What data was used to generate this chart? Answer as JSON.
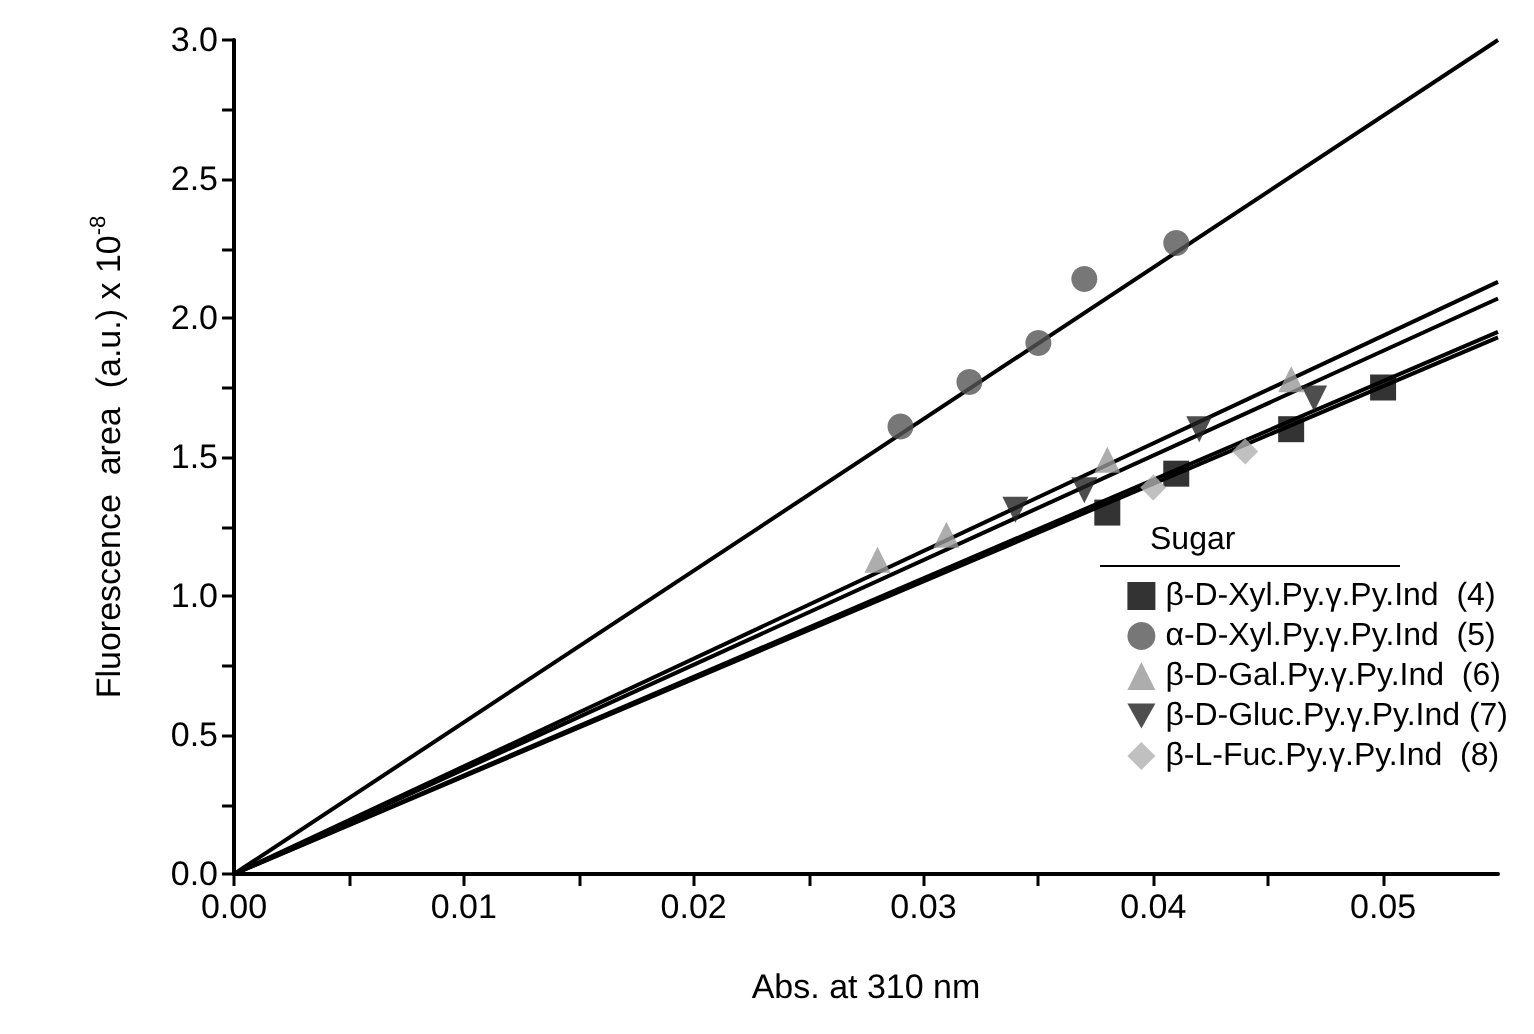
{
  "chart_data": {
    "type": "scatter",
    "xlabel": "Abs. at 310 nm",
    "ylabel": "Fluorescence  area  (a.u.) x 10$^{-8}$",
    "legend_title": "Sugar",
    "legend": "right",
    "grid": false,
    "xlim": [
      0,
      0.055
    ],
    "ylim": [
      0,
      3
    ],
    "xticks": [
      {
        "value": 0,
        "label": "0.00"
      },
      {
        "value": 0.005,
        "label": null
      },
      "0.01",
      {
        "value": 0.015,
        "label": null
      },
      0.02,
      {
        "value": 0.025,
        "label": null
      },
      0.03,
      {
        "value": 0.035,
        "label": null
      },
      0.04,
      {
        "value": 0.045,
        "label": null
      },
      0.05
    ],
    "yticks": [
      {
        "value": 0,
        "label": "0.0"
      },
      {
        "value": 0.25,
        "label": null
      },
      0.5,
      {
        "value": 0.75,
        "label": null
      },
      {
        "value": 1,
        "label": "1.0"
      },
      {
        "value": 1.25,
        "label": null
      },
      1.5,
      {
        "value": 1.75,
        "label": null
      },
      {
        "value": 2,
        "label": "2.0"
      },
      {
        "value": 2.25,
        "label": null
      },
      2.5,
      {
        "value": 2.75,
        "label": null
      },
      {
        "value": 3,
        "label": "3.0"
      }
    ],
    "series": [
      {
        "name": "β-D-Xyl.Py.γ.Py.Ind  (4)",
        "color": "#000000",
        "marker": "square",
        "x": [
          0.038,
          0.041,
          0.046,
          0.05
        ],
        "values": [
          1.3,
          1.44,
          1.6,
          1.75
        ]
      },
      {
        "name": "α-D-Xyl.Py.γ.Py.Ind  (5)",
        "color": "#555555",
        "marker": "circle",
        "x": [
          0.029,
          0.032,
          0.035,
          0.037,
          0.041
        ],
        "values": [
          1.61,
          1.77,
          1.91,
          2.14,
          2.27
        ]
      },
      {
        "name": "β-D-Gal.Py.γ.Py.Ind  (6)",
        "color": "#999999",
        "marker": "triangle",
        "x": [
          0.028,
          0.031,
          0.038,
          0.046
        ],
        "values": [
          1.13,
          1.22,
          1.49,
          1.78
        ]
      },
      {
        "name": "β-D-Gluc.Py.γ.Py.Ind (7)",
        "color": "#222222",
        "marker": "triangle-down",
        "x": [
          0.034,
          0.037,
          0.042,
          0.047
        ],
        "values": [
          1.31,
          1.38,
          1.6,
          1.71
        ]
      },
      {
        "name": "β-L-Fuc.Py.γ.Py.Ind  (8)",
        "color": "#b0b0b0",
        "marker": "diamond",
        "x": [
          0.04,
          0.044
        ],
        "values": [
          1.39,
          1.52
        ]
      },
      {
        "type": "line",
        "color": "#000000",
        "marker": "none",
        "x": [
          0,
          0.055
        ],
        "values": [
          0,
          1.93
        ]
      },
      {
        "type": "line",
        "color": "#000000",
        "marker": "none",
        "x": [
          0,
          0.055
        ],
        "values": [
          0,
          3.0
        ]
      },
      {
        "type": "line",
        "color": "#000000",
        "marker": "none",
        "x": [
          0,
          0.055
        ],
        "values": [
          0,
          2.13
        ]
      },
      {
        "type": "line",
        "color": "#000000",
        "marker": "none",
        "x": [
          0,
          0.055
        ],
        "values": [
          0,
          2.07
        ]
      },
      {
        "type": "line",
        "color": "#000000",
        "marker": "none",
        "x": [
          0,
          0.055
        ],
        "values": [
          0,
          1.95
        ]
      }
    ]
  }
}
